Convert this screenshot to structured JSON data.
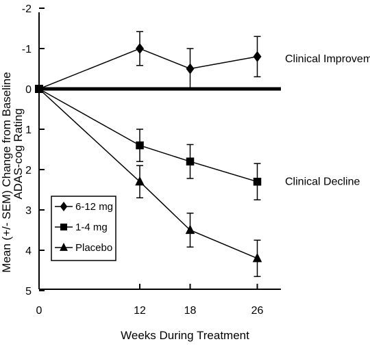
{
  "chart_data": {
    "type": "line",
    "xlabel": "Weeks During Treatment",
    "ylabel_lines": [
      "Mean (+/- SEM) Change from Baseline",
      "ADAS-cog Rating"
    ],
    "x_ticks": [
      "0",
      "12",
      "18",
      "26"
    ],
    "y_ticks": [
      "-2",
      "-1",
      "0",
      "1",
      "2",
      "3",
      "4",
      "5"
    ],
    "xlim": [
      0,
      30
    ],
    "ylim": [
      -2,
      5
    ],
    "y_inverted": true,
    "baseline": 0,
    "legend_position": "lower-left",
    "annotations": [
      {
        "text": "Clinical Improvement",
        "y": -0.75
      },
      {
        "text": "Clinical Decline",
        "y": 2.3
      }
    ],
    "series": [
      {
        "name": "6-12 mg",
        "marker": "diamond",
        "x": [
          0,
          12,
          18,
          26
        ],
        "y": [
          0,
          -1.0,
          -0.5,
          -0.8
        ],
        "err": [
          0,
          0.42,
          0.5,
          0.5
        ]
      },
      {
        "name": "1-4 mg",
        "marker": "square",
        "x": [
          0,
          12,
          18,
          26
        ],
        "y": [
          0,
          1.4,
          1.8,
          2.3
        ],
        "err": [
          0,
          0.4,
          0.42,
          0.45
        ]
      },
      {
        "name": "Placebo",
        "marker": "triangle",
        "x": [
          0,
          12,
          18,
          26
        ],
        "y": [
          0,
          2.3,
          3.5,
          4.2
        ],
        "err": [
          0,
          0.4,
          0.42,
          0.45
        ]
      }
    ]
  }
}
